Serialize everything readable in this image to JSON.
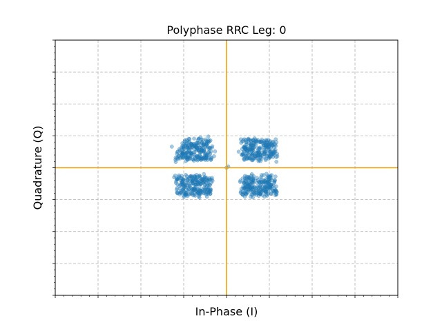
{
  "chart_data": {
    "type": "scatter",
    "title": "Polyphase RRC Leg: 0",
    "xlabel": "In-Phase (I)",
    "ylabel": "Quadrature (Q)",
    "xlim": [
      -1.0,
      1.0
    ],
    "ylim": [
      -1.0,
      1.0
    ],
    "grid": true,
    "tick_labels_shown": false,
    "point_color": "#1f77b4",
    "point_alpha": 0.4,
    "crosshair_color": "#f0a30a",
    "crosshair": {
      "x": 0,
      "y": 0
    },
    "clusters": [
      {
        "name": "",
        "center": [
          -0.19,
          0.14
        ],
        "spread": [
          0.1,
          0.08
        ],
        "count": 230
      },
      {
        "name": "",
        "center": [
          0.19,
          0.14
        ],
        "spread": [
          0.1,
          0.08
        ],
        "count": 230
      },
      {
        "name": "",
        "center": [
          -0.19,
          -0.14
        ],
        "spread": [
          0.1,
          0.08
        ],
        "count": 230
      },
      {
        "name": "",
        "center": [
          0.19,
          -0.14
        ],
        "spread": [
          0.1,
          0.08
        ],
        "count": 230
      }
    ],
    "extra_points": [
      [
        0.0,
        0.0
      ],
      [
        0.01,
        0.01
      ]
    ]
  }
}
